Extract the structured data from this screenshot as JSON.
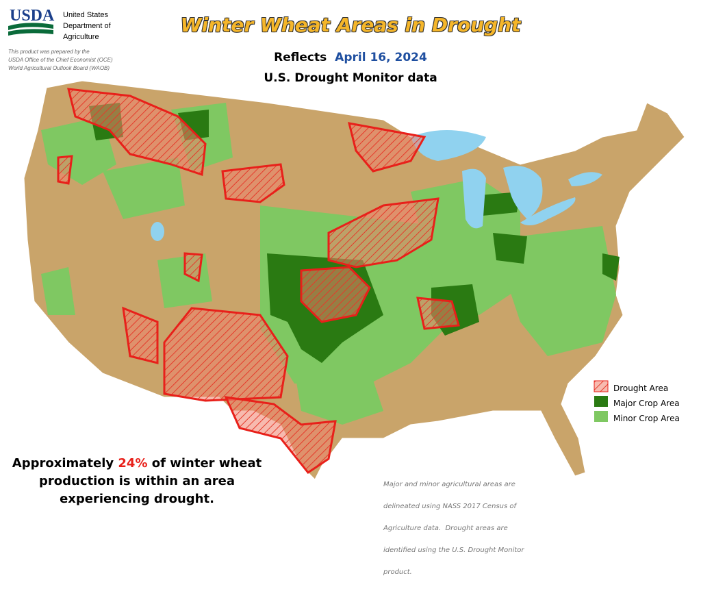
{
  "header": {
    "logo": "USDA",
    "agency_lines": [
      "United States",
      "Department of",
      "Agriculture"
    ],
    "credit_lines": [
      "This product was prepared by the",
      "USDA Office of the Chief Economist (OCE)",
      "World Agricultural Outlook Board (WAOB)"
    ],
    "title": "Winter Wheat Areas in Drought",
    "reflects_label": "Reflects",
    "date": "April 16, 2024",
    "source": "U.S. Drought Monitor data"
  },
  "legend": {
    "items": [
      "Drought Area",
      "Major Crop Area",
      "Minor Crop Area"
    ]
  },
  "summary": {
    "lead": "Approximately",
    "percent": "24%",
    "lines": [
      "of winter wheat",
      "production is within an area",
      "experiencing drought."
    ]
  },
  "footnote": {
    "lines": [
      "Major and minor agricultural areas are",
      "delineated using NASS 2017 Census of",
      "Agriculture data.  Drought areas are",
      "identified using the U.S. Drought Monitor",
      "product."
    ]
  }
}
